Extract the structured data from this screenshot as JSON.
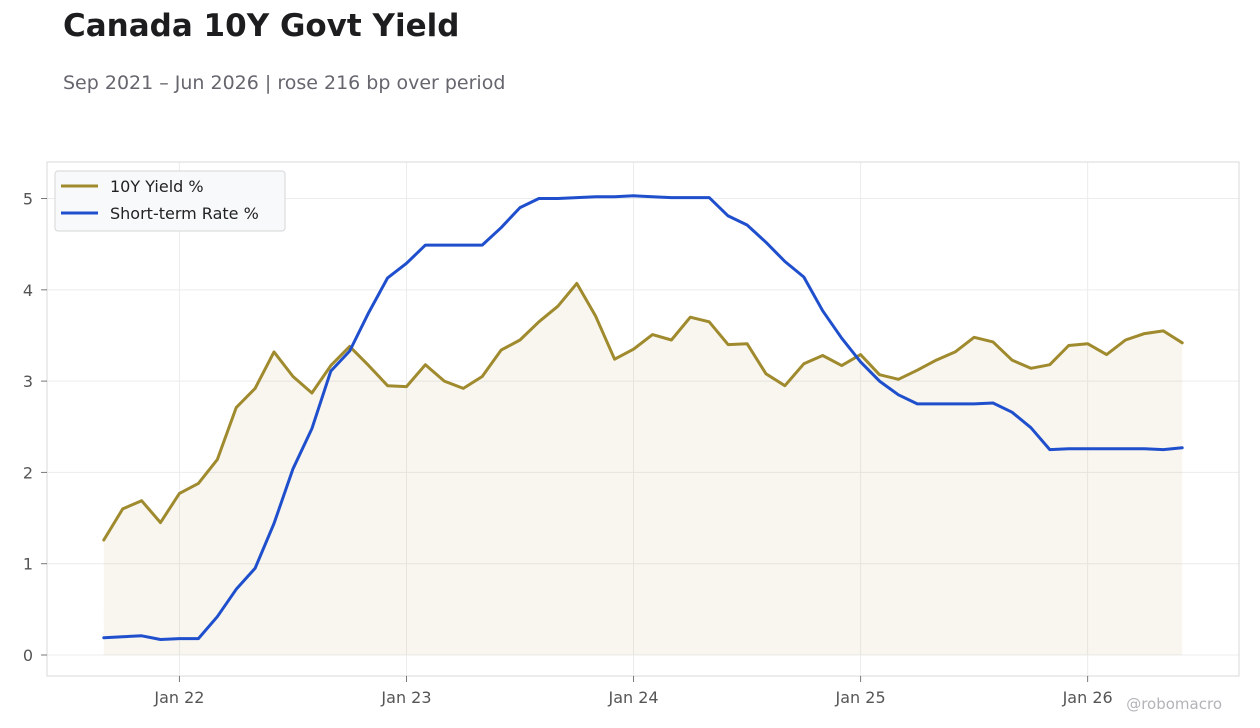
{
  "header": {
    "title": "Canada 10Y Govt Yield",
    "subtitle": "Sep 2021 – Jun 2026 | rose 216 bp over period"
  },
  "watermark": "@robomacro",
  "chart_data": {
    "type": "line",
    "x_unit": "month",
    "x": [
      "2021-09",
      "2021-10",
      "2021-11",
      "2021-12",
      "2022-01",
      "2022-02",
      "2022-03",
      "2022-04",
      "2022-05",
      "2022-06",
      "2022-07",
      "2022-08",
      "2022-09",
      "2022-10",
      "2022-11",
      "2022-12",
      "2023-01",
      "2023-02",
      "2023-03",
      "2023-04",
      "2023-05",
      "2023-06",
      "2023-07",
      "2023-08",
      "2023-09",
      "2023-10",
      "2023-11",
      "2023-12",
      "2024-01",
      "2024-02",
      "2024-03",
      "2024-04",
      "2024-05",
      "2024-06",
      "2024-07",
      "2024-08",
      "2024-09",
      "2024-10",
      "2024-11",
      "2024-12",
      "2025-01",
      "2025-02",
      "2025-03",
      "2025-04",
      "2025-05",
      "2025-06",
      "2025-07",
      "2025-08",
      "2025-09",
      "2025-10",
      "2025-11",
      "2025-12",
      "2026-01",
      "2026-02",
      "2026-03",
      "2026-04",
      "2026-05",
      "2026-06"
    ],
    "series": [
      {
        "name": "10Y Yield %",
        "color": "#a08a2e",
        "fill": true,
        "values": [
          1.26,
          1.6,
          1.69,
          1.45,
          1.77,
          1.88,
          2.14,
          2.71,
          2.92,
          3.32,
          3.05,
          2.87,
          3.17,
          3.38,
          3.17,
          2.95,
          2.94,
          3.18,
          3.0,
          2.92,
          3.05,
          3.34,
          3.45,
          3.65,
          3.82,
          4.07,
          3.71,
          3.24,
          3.35,
          3.51,
          3.45,
          3.7,
          3.65,
          3.4,
          3.41,
          3.08,
          2.95,
          3.19,
          3.28,
          3.17,
          3.29,
          3.07,
          3.02,
          3.12,
          3.23,
          3.32,
          3.48,
          3.43,
          3.23,
          3.14,
          3.18,
          3.39,
          3.41,
          3.29,
          3.45,
          3.52,
          3.55,
          3.42
        ]
      },
      {
        "name": "Short-term Rate %",
        "color": "#1f4fcc",
        "fill": false,
        "values": [
          0.19,
          0.2,
          0.21,
          0.17,
          0.18,
          0.18,
          0.42,
          0.72,
          0.95,
          1.44,
          2.04,
          2.48,
          3.11,
          3.33,
          3.75,
          4.13,
          4.29,
          4.49,
          4.49,
          4.49,
          4.49,
          4.68,
          4.9,
          5.0,
          5.0,
          5.01,
          5.02,
          5.02,
          5.03,
          5.02,
          5.01,
          5.01,
          5.01,
          4.81,
          4.71,
          4.52,
          4.31,
          4.14,
          3.77,
          3.47,
          3.21,
          3.0,
          2.85,
          2.75,
          2.75,
          2.75,
          2.75,
          2.76,
          2.66,
          2.49,
          2.25,
          2.26,
          2.26,
          2.26,
          2.26,
          2.26,
          2.25,
          2.27
        ]
      }
    ],
    "x_tick_labels": [
      {
        "date": "2022-01",
        "label": "Jan 22"
      },
      {
        "date": "2023-01",
        "label": "Jan 23"
      },
      {
        "date": "2024-01",
        "label": "Jan 24"
      },
      {
        "date": "2025-01",
        "label": "Jan 25"
      },
      {
        "date": "2026-01",
        "label": "Jan 26"
      }
    ],
    "y_ticks": [
      0,
      1,
      2,
      3,
      4,
      5
    ],
    "xlim": [
      "2021-06",
      "2026-09"
    ],
    "ylim": [
      -0.23,
      5.4
    ],
    "grid": true,
    "legend_position": "top-left"
  }
}
